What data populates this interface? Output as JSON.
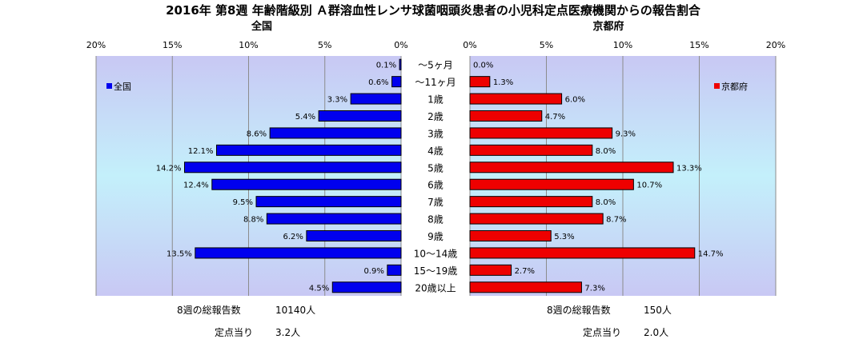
{
  "title": "2016年 第8週 年齢階級別 Ａ群溶血性レンサ球菌咽頭炎患者の小児科定点医療機関からの報告割合",
  "chart_data": [
    {
      "type": "bar",
      "title": "全国",
      "orientation": "horizontal",
      "x_direction": "reversed",
      "categories": [
        "〜5ヶ月",
        "〜11ヶ月",
        "1歳",
        "2歳",
        "3歳",
        "4歳",
        "5歳",
        "6歳",
        "7歳",
        "8歳",
        "9歳",
        "10〜14歳",
        "15〜19歳",
        "20歳以上"
      ],
      "series": [
        {
          "name": "全国",
          "color": "#0000ee",
          "values": [
            0.1,
            0.6,
            3.3,
            5.4,
            8.6,
            12.1,
            14.2,
            12.4,
            9.5,
            8.8,
            6.2,
            13.5,
            0.9,
            4.5
          ],
          "labels": [
            "0.1%",
            "0.6%",
            "3.3%",
            "5.4%",
            "8.6%",
            "12.1%",
            "14.2%",
            "12.4%",
            "9.5%",
            "8.8%",
            "6.2%",
            "13.5%",
            "0.9%",
            "4.5%"
          ]
        }
      ],
      "xlim": [
        0,
        20
      ],
      "ticks": [
        "20%",
        "15%",
        "10%",
        "5%",
        "0%"
      ],
      "legend_position": "left",
      "grid": true
    },
    {
      "type": "bar",
      "title": "京都府",
      "orientation": "horizontal",
      "x_direction": "normal",
      "categories": [
        "〜5ヶ月",
        "〜11ヶ月",
        "1歳",
        "2歳",
        "3歳",
        "4歳",
        "5歳",
        "6歳",
        "7歳",
        "8歳",
        "9歳",
        "10〜14歳",
        "15〜19歳",
        "20歳以上"
      ],
      "series": [
        {
          "name": "京都府",
          "color": "#ee0000",
          "values": [
            0.0,
            1.3,
            6.0,
            4.7,
            9.3,
            8.0,
            13.3,
            10.7,
            8.0,
            8.7,
            5.3,
            14.7,
            2.7,
            7.3
          ],
          "labels": [
            "0.0%",
            "1.3%",
            "6.0%",
            "4.7%",
            "9.3%",
            "8.0%",
            "13.3%",
            "10.7%",
            "8.0%",
            "8.7%",
            "5.3%",
            "14.7%",
            "2.7%",
            "7.3%"
          ]
        }
      ],
      "xlim": [
        0,
        20
      ],
      "ticks": [
        "0%",
        "5%",
        "10%",
        "15%",
        "20%"
      ],
      "legend_position": "right",
      "grid": true
    }
  ],
  "footer": {
    "left": {
      "total_label": "8週の総報告数",
      "total_value": "10140人",
      "per_label": "定点当り",
      "per_value": "3.2人"
    },
    "right": {
      "total_label": "8週の総報告数",
      "total_value": "150人",
      "per_label": "定点当り",
      "per_value": "2.0人"
    }
  }
}
